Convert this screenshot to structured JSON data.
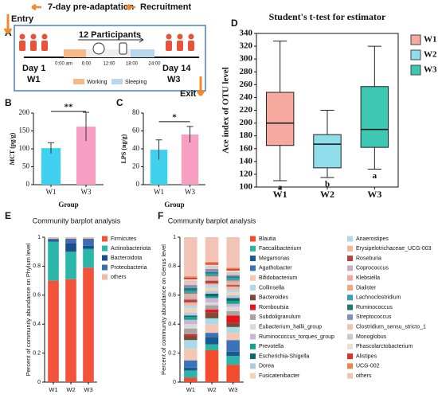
{
  "panel_a": {
    "label": "A",
    "pre_adaptation": "7-day pre-adaptation",
    "recruitment": "Recruitment",
    "entry": "Entry",
    "participants": "12 Participants",
    "start_day": "Day 1",
    "start_week": "W1",
    "end_day": "Day 14",
    "end_week": "W3",
    "times": [
      "0:00 am",
      "6:00",
      "12:00",
      "18:00",
      "24:00"
    ],
    "legend": [
      "Working",
      "Sleeping"
    ],
    "exit": "Exit"
  },
  "chart_data": [
    {
      "type": "bar",
      "panel": "B",
      "ylabel": "MCT (pg/g)",
      "xlabel": "Group",
      "categories": [
        "W1",
        "W3"
      ],
      "values": [
        102,
        162
      ],
      "errors": [
        15,
        40
      ],
      "colors": [
        "#3fd0ee",
        "#f7a0c4"
      ],
      "ylim": [
        0,
        200
      ],
      "yticks": [
        0,
        50,
        100,
        150,
        200
      ],
      "significance": "**"
    },
    {
      "type": "bar",
      "panel": "C",
      "ylabel": "LPS (ng/g)",
      "xlabel": "Group",
      "categories": [
        "W1",
        "W3"
      ],
      "values": [
        39,
        56
      ],
      "errors": [
        11,
        9
      ],
      "colors": [
        "#3fd0ee",
        "#f7a0c4"
      ],
      "ylim": [
        0,
        80
      ],
      "yticks": [
        0,
        20,
        40,
        60,
        80
      ],
      "significance": "*"
    },
    {
      "type": "box",
      "panel": "D",
      "title": "Student's t-test for estimator",
      "ylabel": "Ace index of OTU level",
      "categories": [
        "W1",
        "W2",
        "W3"
      ],
      "colors": [
        "#f6a99e",
        "#8fdcea",
        "#3cc8b2"
      ],
      "boxes": [
        {
          "min": 110,
          "q1": 165,
          "median": 200,
          "q3": 248,
          "max": 328
        },
        {
          "min": 115,
          "q1": 130,
          "median": 167,
          "q3": 182,
          "max": 220
        },
        {
          "min": 128,
          "q1": 162,
          "median": 190,
          "q3": 257,
          "max": 320
        }
      ],
      "letters": [
        "a",
        "b",
        "a"
      ],
      "ylim": [
        100,
        340
      ],
      "yticks": [
        100,
        120,
        140,
        160,
        180,
        200,
        220,
        240,
        260,
        280,
        300,
        320,
        340
      ]
    },
    {
      "type": "stacked_bar",
      "panel": "E",
      "title": "Community barplot analysis",
      "ylabel": "Percent of community abundance on Phylum level",
      "categories": [
        "W1",
        "W2",
        "W3"
      ],
      "ylim": [
        0,
        1
      ],
      "yticks": [
        0,
        0.2,
        0.4,
        0.6,
        0.8,
        1
      ],
      "series": [
        {
          "name": "Firmicutes",
          "color": "#f4533b",
          "values": [
            0.7,
            0.71,
            0.79
          ]
        },
        {
          "name": "Actinobacteriota",
          "color": "#2ab7a9",
          "values": [
            0.27,
            0.19,
            0.13
          ]
        },
        {
          "name": "Bacteroidota",
          "color": "#1a4e8a",
          "values": [
            0.01,
            0.06,
            0.02
          ]
        },
        {
          "name": "Proteobacteria",
          "color": "#3d6fb0",
          "values": [
            0.01,
            0.03,
            0.05
          ]
        },
        {
          "name": "others",
          "color": "#f4b6a8",
          "values": [
            0.01,
            0.01,
            0.01
          ]
        }
      ]
    },
    {
      "type": "stacked_bar",
      "panel": "F",
      "title": "Community barplot analysis",
      "ylabel": "Percent of community abundance on Genus level",
      "categories": [
        "W1",
        "W2",
        "W3"
      ],
      "ylim": [
        0,
        1
      ],
      "yticks": [
        0,
        0.2,
        0.4,
        0.6,
        0.8,
        1
      ],
      "series": [
        {
          "name": "Blautia",
          "color": "#f44b2d",
          "values": [
            0.03,
            0.22,
            0.12
          ]
        },
        {
          "name": "Faecalibacterium",
          "color": "#2ab5a8",
          "values": [
            0.05,
            0.04,
            0.06
          ]
        },
        {
          "name": "Megamonas",
          "color": "#1a5a8c",
          "values": [
            0.02,
            0.05,
            0.03
          ]
        },
        {
          "name": "Agathobacter",
          "color": "#3b73b9",
          "values": [
            0.05,
            0.03,
            0.08
          ]
        },
        {
          "name": "Bifidobacterium",
          "color": "#f6c6b3",
          "values": [
            0.08,
            0.06,
            0.05
          ]
        },
        {
          "name": "Collinsella",
          "color": "#a8dbe8",
          "values": [
            0.06,
            0.04,
            0.04
          ]
        },
        {
          "name": "Bacteroides",
          "color": "#7b4a3a",
          "values": [
            0.03,
            0.04,
            0.03
          ]
        },
        {
          "name": "Romboutsia",
          "color": "#e8141c",
          "values": [
            0.01,
            0.02,
            0.05
          ]
        },
        {
          "name": "Subdoligranulum",
          "color": "#a8a3a0",
          "values": [
            0.04,
            0.03,
            0.03
          ]
        },
        {
          "name": "Eubacterium_hallii_group",
          "color": "#d9d9d9",
          "values": [
            0.03,
            0.02,
            0.03
          ]
        },
        {
          "name": "Ruminococcus_torques_group",
          "color": "#c9b6d6",
          "values": [
            0.03,
            0.03,
            0.02
          ]
        },
        {
          "name": "Prevotella",
          "color": "#15a38c",
          "values": [
            0.02,
            0.01,
            0.02
          ]
        },
        {
          "name": "Escherichia-Shigella",
          "color": "#0e6b6b",
          "values": [
            0.01,
            0.02,
            0.02
          ]
        },
        {
          "name": "Dorea",
          "color": "#b8c7e0",
          "values": [
            0.02,
            0.02,
            0.02
          ]
        },
        {
          "name": "Fusicatenibacter",
          "color": "#f0d4b8",
          "values": [
            0.03,
            0.02,
            0.02
          ]
        },
        {
          "name": "Anaerostipes",
          "color": "#b3d9e8",
          "values": [
            0.02,
            0.02,
            0.02
          ]
        },
        {
          "name": "Erysipelotrichaceae_UCG-003",
          "color": "#f7b49a",
          "values": [
            0.02,
            0.01,
            0.02
          ]
        },
        {
          "name": "Roseburia",
          "color": "#b5443a",
          "values": [
            0.02,
            0.02,
            0.01
          ]
        },
        {
          "name": "Coprococcus",
          "color": "#c9b0c0",
          "values": [
            0.02,
            0.01,
            0.01
          ]
        },
        {
          "name": "Klebsiella",
          "color": "#f4a6a0",
          "values": [
            0.01,
            0.01,
            0.01
          ]
        },
        {
          "name": "Dialister",
          "color": "#f4a580",
          "values": [
            0.01,
            0.01,
            0.01
          ]
        },
        {
          "name": "Lachnoclostridium",
          "color": "#3aa0b0",
          "values": [
            0.02,
            0.02,
            0.02
          ]
        },
        {
          "name": "Ruminococcus",
          "color": "#1f7a6a",
          "values": [
            0.02,
            0.01,
            0.01
          ]
        },
        {
          "name": "Streptococcus",
          "color": "#7f8fbf",
          "values": [
            0.02,
            0.02,
            0.01
          ]
        },
        {
          "name": "Clostridium_sensu_stricto_1",
          "color": "#f2c2b2",
          "values": [
            0.02,
            0.01,
            0.01
          ]
        },
        {
          "name": "Monoglobus",
          "color": "#c8c8d8",
          "values": [
            0.01,
            0.01,
            0.01
          ]
        },
        {
          "name": "Phascolarctobacterium",
          "color": "#e8e0d0",
          "values": [
            0.01,
            0.01,
            0.01
          ]
        },
        {
          "name": "Alistipes",
          "color": "#d9342b",
          "values": [
            0.01,
            0.01,
            0.01
          ]
        },
        {
          "name": "UCG-002",
          "color": "#e88850",
          "values": [
            0.01,
            0.01,
            0.01
          ]
        },
        {
          "name": "others",
          "color": "#f2c4b6",
          "values": [
            0.27,
            0.17,
            0.21
          ]
        }
      ]
    }
  ]
}
